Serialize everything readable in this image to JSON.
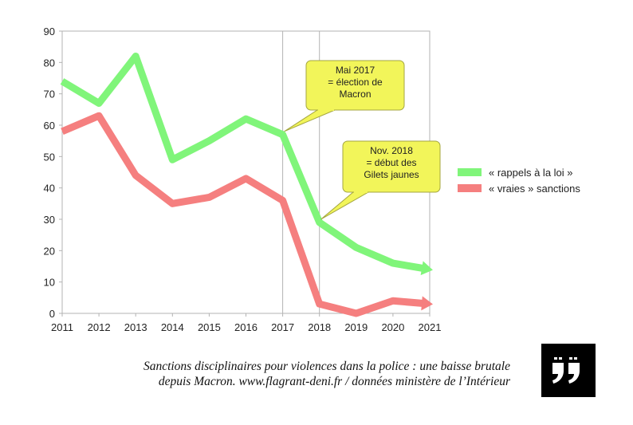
{
  "colors": {
    "rappels": "#80f57a",
    "sanctions": "#f57f7f",
    "callout_fill": "#f2f55a",
    "callout_stroke": "#a4a640"
  },
  "chart_data": {
    "type": "line",
    "title": "",
    "xlabel": "",
    "ylabel": "",
    "x": [
      "2011",
      "2012",
      "2013",
      "2014",
      "2015",
      "2016",
      "2017",
      "2018",
      "2019",
      "2020",
      "2021"
    ],
    "ylim": [
      0,
      90
    ],
    "yticks": [
      "0",
      "10",
      "20",
      "30",
      "40",
      "50",
      "60",
      "70",
      "80",
      "90"
    ],
    "grid": "vertical lines at 2017 and 2018",
    "legend_position": "right",
    "series": [
      {
        "name": "« rappels à la loi »",
        "color": "#80f57a",
        "values": [
          74,
          67,
          82,
          49,
          55,
          62,
          57,
          29,
          21,
          16,
          14
        ]
      },
      {
        "name": "« vraies » sanctions",
        "color": "#f57f7f",
        "values": [
          58,
          63,
          44,
          35,
          37,
          43,
          36,
          3,
          0,
          4,
          3
        ]
      }
    ],
    "annotations": [
      {
        "lines": [
          "Mai 2017",
          "= élection de",
          "Macron"
        ],
        "points_to_x": "2017"
      },
      {
        "lines": [
          "Nov. 2018",
          "= début des",
          "Gilets jaunes"
        ],
        "points_to_x": "2018"
      }
    ]
  },
  "caption": {
    "line1": "Sanctions disciplinaires pour violences dans la police : une baisse brutale",
    "line2": "depuis Macron. www.flagrant-deni.fr / données ministère de l’Intérieur"
  },
  "logo": {
    "icon": "quote-marks-icon"
  }
}
